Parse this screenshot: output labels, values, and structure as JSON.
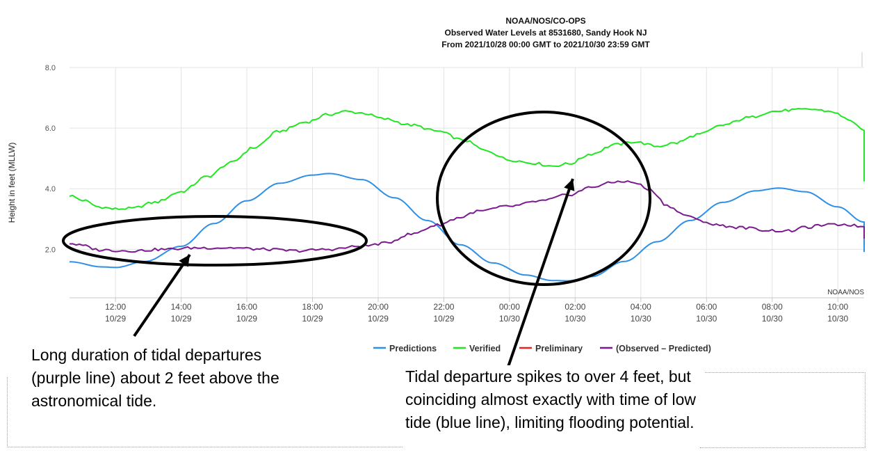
{
  "chart_data": {
    "type": "line",
    "title": "NOAA/NOS/CO-OPS",
    "subtitle": [
      "Observed Water Levels at 8531680, Sandy Hook NJ",
      "From 2021/10/28 00:00 GMT to 2021/10/30 23:59 GMT"
    ],
    "ylabel": "Height in feet (MLLW)",
    "xlabel": "",
    "ylim": [
      0.4,
      8.0
    ],
    "yticks": [
      "2.0",
      "4.0",
      "6.0",
      "8.0"
    ],
    "x_time_range_hours_from_2021_10_29_00": [
      10.6,
      34.8
    ],
    "xticks": [
      {
        "time": "12:00",
        "date": "10/29"
      },
      {
        "time": "14:00",
        "date": "10/29"
      },
      {
        "time": "16:00",
        "date": "10/29"
      },
      {
        "time": "18:00",
        "date": "10/29"
      },
      {
        "time": "20:00",
        "date": "10/29"
      },
      {
        "time": "22:00",
        "date": "10/29"
      },
      {
        "time": "00:00",
        "date": "10/30"
      },
      {
        "time": "02:00",
        "date": "10/30"
      },
      {
        "time": "04:00",
        "date": "10/30"
      },
      {
        "time": "06:00",
        "date": "10/30"
      },
      {
        "time": "08:00",
        "date": "10/30"
      },
      {
        "time": "10:00",
        "date": "10/30"
      }
    ],
    "grid": true,
    "legend_position": "bottom",
    "watermark": "NOAA/NOS",
    "series": [
      {
        "name": "Predictions",
        "color": "#2e8fe6",
        "points": [
          [
            10.6,
            1.59
          ],
          [
            11.6,
            1.42
          ],
          [
            12.0,
            1.4
          ],
          [
            12.9,
            1.6
          ],
          [
            14.0,
            2.1
          ],
          [
            15.0,
            2.85
          ],
          [
            16.0,
            3.6
          ],
          [
            17.0,
            4.18
          ],
          [
            18.0,
            4.45
          ],
          [
            18.5,
            4.5
          ],
          [
            19.5,
            4.3
          ],
          [
            20.5,
            3.7
          ],
          [
            21.5,
            2.95
          ],
          [
            22.5,
            2.15
          ],
          [
            23.5,
            1.55
          ],
          [
            24.5,
            1.15
          ],
          [
            25.3,
            0.97
          ],
          [
            25.8,
            0.96
          ],
          [
            26.5,
            1.1
          ],
          [
            27.5,
            1.6
          ],
          [
            28.5,
            2.25
          ],
          [
            29.5,
            2.95
          ],
          [
            30.5,
            3.55
          ],
          [
            31.5,
            3.93
          ],
          [
            32.2,
            4.02
          ],
          [
            33.0,
            3.9
          ],
          [
            34.0,
            3.4
          ],
          [
            34.8,
            2.9
          ],
          [
            35.5,
            2.45
          ],
          [
            36.0,
            2.1
          ],
          [
            36.4,
            1.9
          ]
        ]
      },
      {
        "name": "Verified",
        "color": "#22e622",
        "points": [
          [
            10.6,
            3.78
          ],
          [
            11.0,
            3.62
          ],
          [
            11.5,
            3.4
          ],
          [
            12.0,
            3.33
          ],
          [
            12.5,
            3.35
          ],
          [
            13.2,
            3.55
          ],
          [
            14.0,
            3.9
          ],
          [
            14.8,
            4.4
          ],
          [
            15.5,
            4.85
          ],
          [
            16.2,
            5.35
          ],
          [
            17.0,
            5.9
          ],
          [
            17.8,
            6.2
          ],
          [
            18.5,
            6.45
          ],
          [
            19.0,
            6.55
          ],
          [
            19.5,
            6.5
          ],
          [
            20.2,
            6.3
          ],
          [
            21.0,
            6.1
          ],
          [
            21.8,
            5.9
          ],
          [
            22.6,
            5.6
          ],
          [
            23.3,
            5.25
          ],
          [
            24.0,
            4.95
          ],
          [
            24.7,
            4.85
          ],
          [
            25.3,
            4.75
          ],
          [
            25.8,
            4.82
          ],
          [
            26.5,
            5.15
          ],
          [
            27.2,
            5.45
          ],
          [
            27.8,
            5.55
          ],
          [
            28.5,
            5.4
          ],
          [
            29.0,
            5.5
          ],
          [
            29.8,
            5.8
          ],
          [
            30.5,
            6.1
          ],
          [
            31.3,
            6.35
          ],
          [
            32.0,
            6.55
          ],
          [
            32.7,
            6.6
          ],
          [
            33.2,
            6.62
          ],
          [
            33.8,
            6.55
          ],
          [
            34.3,
            6.3
          ],
          [
            34.8,
            5.9
          ],
          [
            35.3,
            5.45
          ],
          [
            35.8,
            5.0
          ],
          [
            36.4,
            4.2
          ]
        ]
      },
      {
        "name": "Preliminary",
        "color": "#ee2222",
        "points": []
      },
      {
        "name": "(Observed – Predicted)",
        "color": "#7a1a8e",
        "points": [
          [
            10.6,
            2.2
          ],
          [
            11.0,
            2.12
          ],
          [
            11.5,
            1.98
          ],
          [
            12.5,
            1.95
          ],
          [
            13.5,
            2.0
          ],
          [
            14.5,
            2.05
          ],
          [
            15.5,
            2.05
          ],
          [
            16.5,
            2.0
          ],
          [
            17.5,
            1.95
          ],
          [
            18.5,
            2.0
          ],
          [
            19.5,
            2.1
          ],
          [
            20.2,
            2.2
          ],
          [
            21.0,
            2.5
          ],
          [
            21.8,
            2.8
          ],
          [
            22.5,
            3.05
          ],
          [
            23.0,
            3.25
          ],
          [
            24.0,
            3.42
          ],
          [
            25.0,
            3.6
          ],
          [
            25.8,
            3.8
          ],
          [
            26.5,
            4.05
          ],
          [
            27.0,
            4.18
          ],
          [
            27.4,
            4.25
          ],
          [
            27.8,
            4.2
          ],
          [
            28.3,
            3.95
          ],
          [
            28.8,
            3.45
          ],
          [
            29.3,
            3.15
          ],
          [
            29.8,
            2.95
          ],
          [
            30.3,
            2.8
          ],
          [
            31.0,
            2.72
          ],
          [
            32.0,
            2.62
          ],
          [
            32.5,
            2.6
          ],
          [
            33.0,
            2.72
          ],
          [
            33.6,
            2.8
          ],
          [
            34.2,
            2.82
          ],
          [
            34.8,
            2.75
          ],
          [
            35.5,
            2.6
          ],
          [
            36.0,
            2.42
          ],
          [
            36.4,
            2.35
          ]
        ]
      }
    ]
  },
  "callouts": {
    "left": "Long duration of tidal departures (purple line) about 2 feet above the astronomical tide.",
    "right": "Tidal departure spikes to over 4 feet, but coinciding almost exactly with time of low tide (blue line), limiting flooding potential."
  }
}
